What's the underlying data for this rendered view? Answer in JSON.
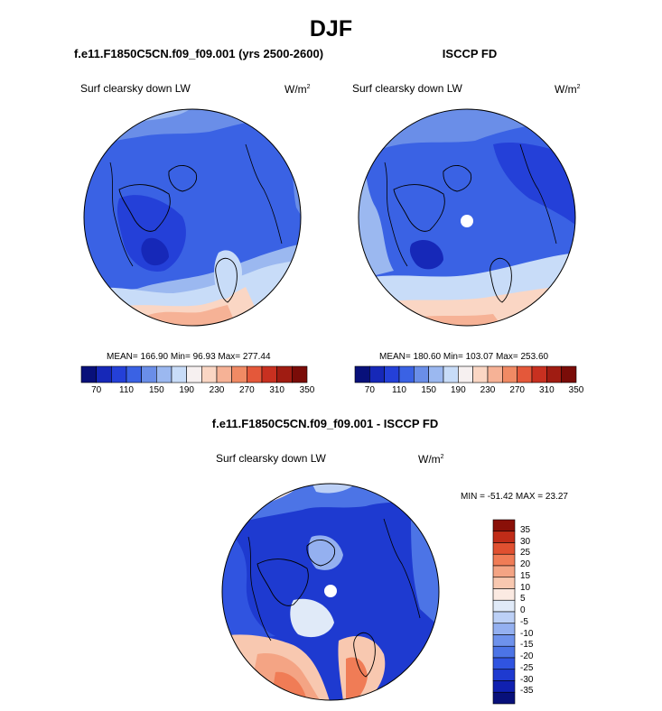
{
  "figure": {
    "title": "DJF"
  },
  "palette": [
    "#08107a",
    "#1628b8",
    "#2440d8",
    "#3a62e4",
    "#6a8ee8",
    "#9bb8f0",
    "#c8dcf8",
    "#f6f0f0",
    "#fad6c4",
    "#f6b296",
    "#f08a64",
    "#e4583a",
    "#c83020",
    "#a01c12",
    "#7a0c08"
  ],
  "diff_palette": [
    "#08107a",
    "#1020b0",
    "#1e3ad0",
    "#3054e0",
    "#4c74e6",
    "#6e92ec",
    "#94b0f0",
    "#bcd0f6",
    "#e0eaf8",
    "#fbeae2",
    "#f8c8b0",
    "#f4a484",
    "#f07c56",
    "#e05030",
    "#c02c18",
    "#8a1008"
  ],
  "chart_data": [
    {
      "type": "polar-contour-map",
      "id": "model",
      "title": "f.e11.F1850C5CN.f09_f09.001 (yrs 2500-2600)",
      "variable": "Surf clearsky down LW",
      "units_base": "W/m",
      "units_exp": "2",
      "stats": {
        "mean": "166.90",
        "min": "96.93",
        "max": "277.44"
      },
      "stats_text": "MEAN= 166.90  Min=  96.93  Max= 277.44",
      "colorbar": {
        "levels": [
          70,
          90,
          110,
          130,
          150,
          170,
          190,
          210,
          230,
          250,
          270,
          290,
          310,
          330,
          350
        ],
        "tick_labels": [
          "70",
          "110",
          "150",
          "190",
          "230",
          "270",
          "310",
          "350"
        ]
      }
    },
    {
      "type": "polar-contour-map",
      "id": "obs",
      "title": "ISCCP FD",
      "variable": "Surf clearsky down LW",
      "units_base": "W/m",
      "units_exp": "2",
      "stats": {
        "mean": "180.60",
        "min": "103.07",
        "max": "253.60"
      },
      "stats_text": "MEAN= 180.60  Min= 103.07  Max= 253.60",
      "colorbar": {
        "levels": [
          70,
          90,
          110,
          130,
          150,
          170,
          190,
          210,
          230,
          250,
          270,
          290,
          310,
          330,
          350
        ],
        "tick_labels": [
          "70",
          "110",
          "150",
          "190",
          "230",
          "270",
          "310",
          "350"
        ]
      }
    },
    {
      "type": "polar-contour-map",
      "id": "diff",
      "title": "f.e11.F1850C5CN.f09_f09.001 - ISCCP FD",
      "variable": "Surf clearsky down LW",
      "units_base": "W/m",
      "units_exp": "2",
      "stats": {
        "min": "-51.42",
        "max": "23.27"
      },
      "stats_text": "MIN = -51.42 MAX =  23.27",
      "colorbar": {
        "orientation": "vertical",
        "levels": [
          -35,
          -30,
          -25,
          -20,
          -15,
          -10,
          -5,
          0,
          5,
          10,
          15,
          20,
          25,
          30,
          35
        ],
        "tick_labels": [
          "35",
          "30",
          "25",
          "20",
          "15",
          "10",
          "5",
          "0",
          "-5",
          "-10",
          "-15",
          "-20",
          "-25",
          "-30",
          "-35"
        ]
      }
    }
  ]
}
